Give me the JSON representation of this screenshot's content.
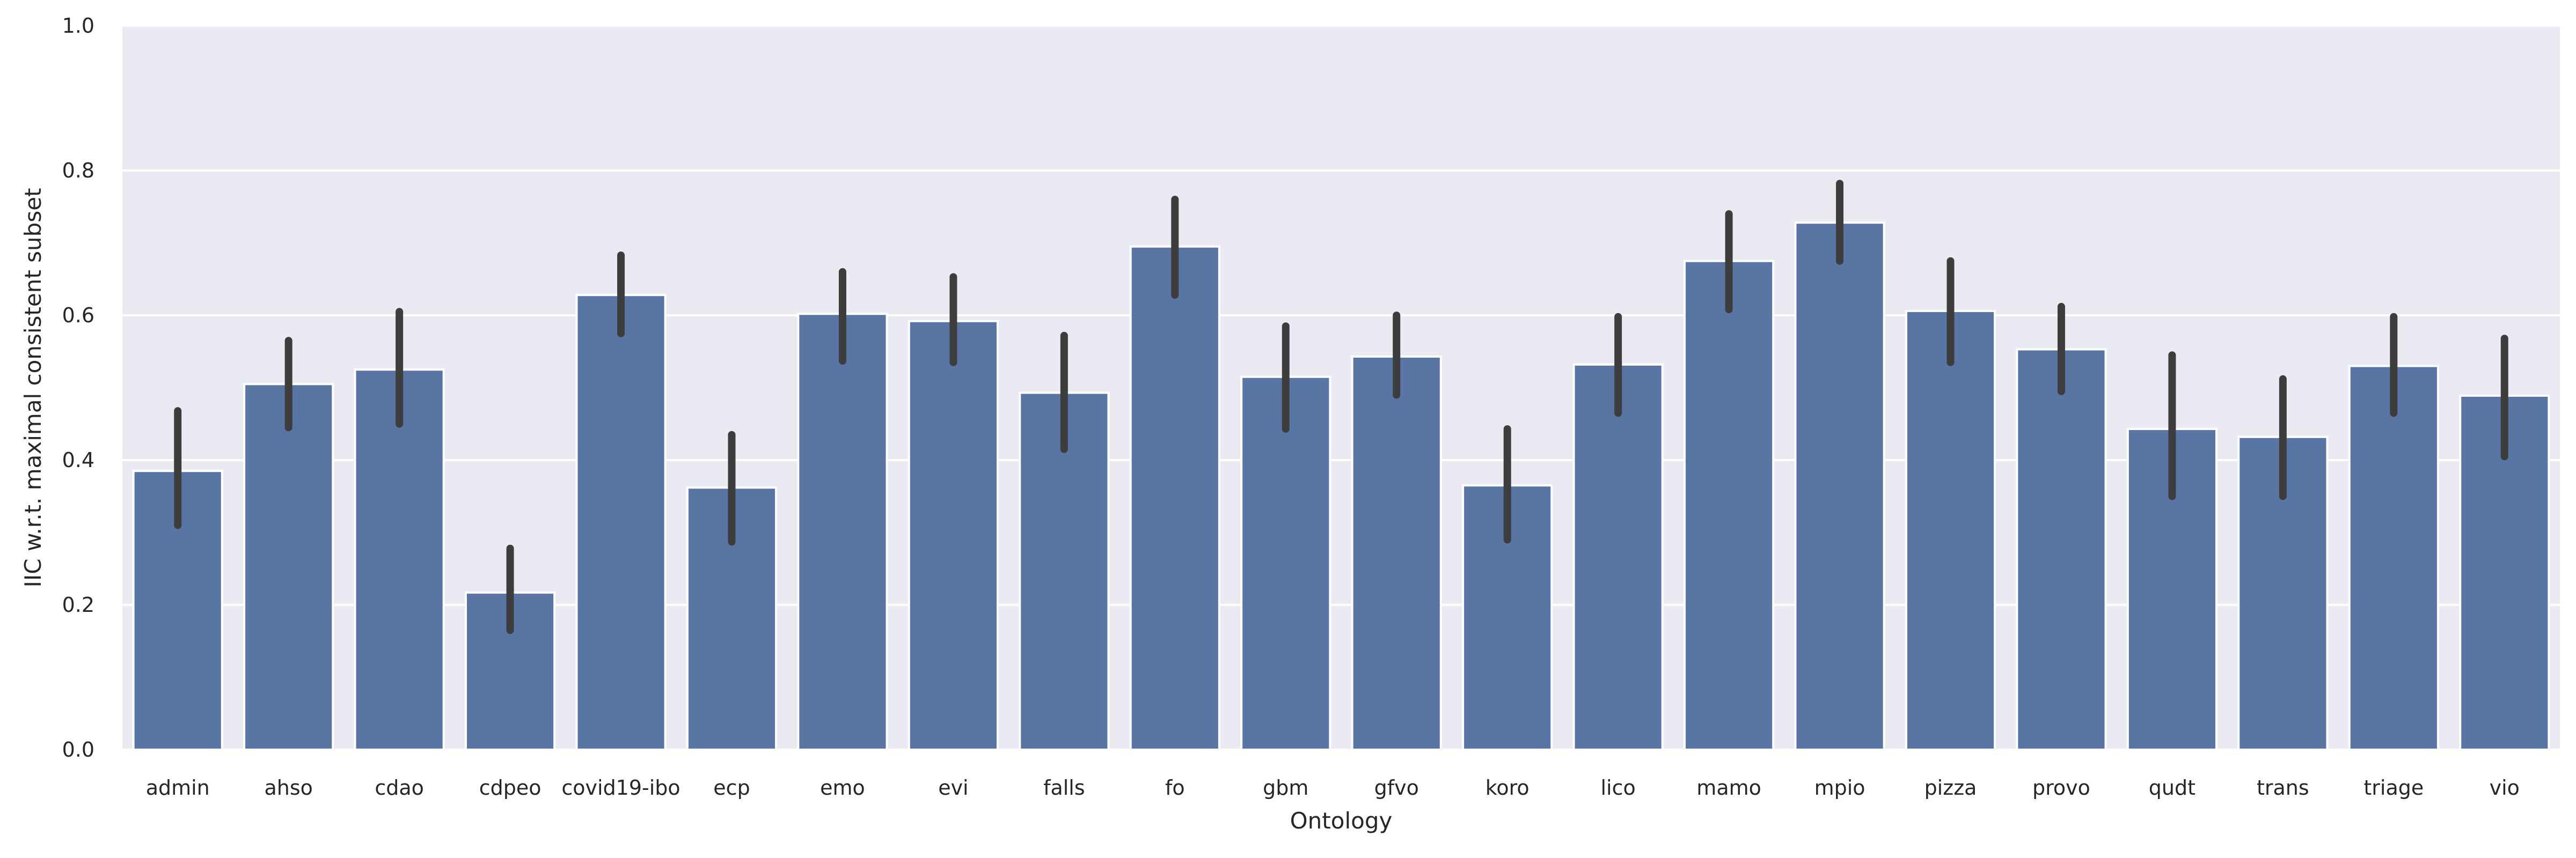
{
  "chart_data": {
    "type": "bar",
    "xlabel": "Ontology",
    "ylabel": "IIC w.r.t. maximal consistent subset",
    "ylim": [
      0,
      1.0
    ],
    "yticks": [
      0.0,
      0.2,
      0.4,
      0.6,
      0.8,
      1.0
    ],
    "grid": true,
    "categories": [
      "admin",
      "ahso",
      "cdao",
      "cdpeo",
      "covid19-ibo",
      "ecp",
      "emo",
      "evi",
      "falls",
      "fo",
      "gbm",
      "gfvo",
      "koro",
      "lico",
      "mamo",
      "mpio",
      "pizza",
      "provo",
      "qudt",
      "trans",
      "triage",
      "vio"
    ],
    "values": [
      0.385,
      0.505,
      0.525,
      0.217,
      0.628,
      0.362,
      0.602,
      0.592,
      0.493,
      0.695,
      0.515,
      0.543,
      0.365,
      0.532,
      0.675,
      0.728,
      0.606,
      0.553,
      0.443,
      0.432,
      0.53,
      0.489
    ],
    "error_low": [
      0.31,
      0.445,
      0.45,
      0.165,
      0.575,
      0.287,
      0.537,
      0.535,
      0.415,
      0.628,
      0.443,
      0.49,
      0.29,
      0.465,
      0.608,
      0.675,
      0.535,
      0.495,
      0.35,
      0.35,
      0.465,
      0.405
    ],
    "error_high": [
      0.468,
      0.565,
      0.605,
      0.278,
      0.683,
      0.435,
      0.66,
      0.653,
      0.572,
      0.76,
      0.585,
      0.6,
      0.443,
      0.598,
      0.74,
      0.782,
      0.675,
      0.612,
      0.545,
      0.512,
      0.598,
      0.568
    ],
    "colors": {
      "bar": "#5975a4",
      "error": "#3d3d3d",
      "plot_bg": "#eaeaf2",
      "grid": "#ffffff",
      "text": "#262626"
    }
  }
}
